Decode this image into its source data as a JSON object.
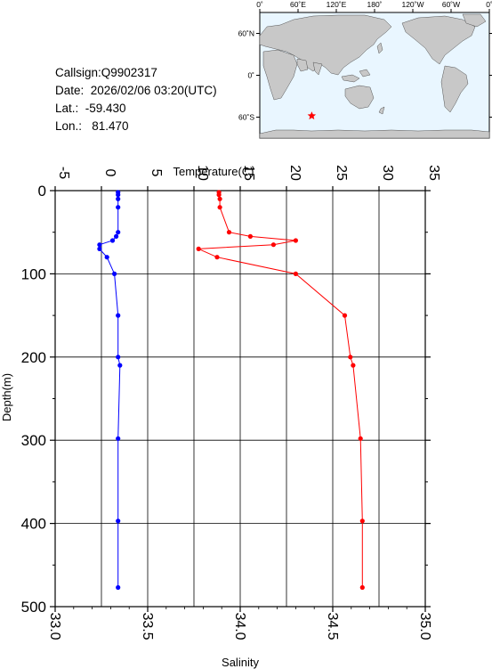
{
  "header": {
    "callsign": "Callsign:Q9902317",
    "date": "Date:  2026/02/06 03:20(UTC)",
    "lat": "Lat.:  -59.430",
    "lon": "Lon.:   81.470"
  },
  "map": {
    "lon_labels": [
      "0˚",
      "60˚E",
      "120˚E",
      "180˚",
      "120˚W",
      "60˚W",
      "0˚"
    ],
    "lat_labels": [
      "60˚N",
      "0˚",
      "60˚S"
    ],
    "float_position": {
      "lat": -59.43,
      "lon": 81.47
    },
    "ocean_color": "#e9f6ff",
    "land_color": "#c8c8c8",
    "marker_color": "#ff0000",
    "marker_icon": "star-icon"
  },
  "chart_data": {
    "type": "line",
    "y_axis": {
      "label": "Depth(m)",
      "range": [
        0,
        500
      ],
      "inverted": true,
      "ticks": [
        "0",
        "100",
        "200",
        "300",
        "400",
        "500"
      ]
    },
    "temperature_axis": {
      "label": "Temperature(C)",
      "position": "top",
      "range": [
        -5,
        35
      ],
      "ticks": [
        "-5",
        "0",
        "5",
        "10",
        "15",
        "20",
        "25",
        "30",
        "35"
      ]
    },
    "salinity_axis": {
      "label": "Salinity",
      "position": "bottom",
      "range": [
        33.0,
        35.0
      ],
      "ticks": [
        "33.0",
        "33.5",
        "34.0",
        "34.5",
        "35.0"
      ]
    },
    "grid": true,
    "series": [
      {
        "name": "Temperature(C)",
        "color": "#ff0000",
        "axis": "temperature",
        "depth": [
          2,
          5,
          10,
          20,
          50,
          55,
          60,
          65,
          70,
          80,
          100,
          150,
          200,
          210,
          298,
          397,
          477
        ],
        "values": [
          12.7,
          12.7,
          12.8,
          12.8,
          13.8,
          16.1,
          21.0,
          18.6,
          10.5,
          12.5,
          21.0,
          26.3,
          26.9,
          27.2,
          28.0,
          28.2,
          28.2
        ]
      },
      {
        "name": "Salinity",
        "color": "#0000ff",
        "axis": "salinity",
        "depth": [
          2,
          5,
          10,
          20,
          50,
          55,
          60,
          65,
          70,
          80,
          100,
          150,
          200,
          210,
          298,
          397,
          477
        ],
        "values": [
          33.34,
          33.34,
          33.34,
          33.34,
          33.34,
          33.33,
          33.31,
          33.24,
          33.24,
          33.28,
          33.32,
          33.34,
          33.34,
          33.35,
          33.34,
          33.34,
          33.34
        ]
      }
    ]
  }
}
